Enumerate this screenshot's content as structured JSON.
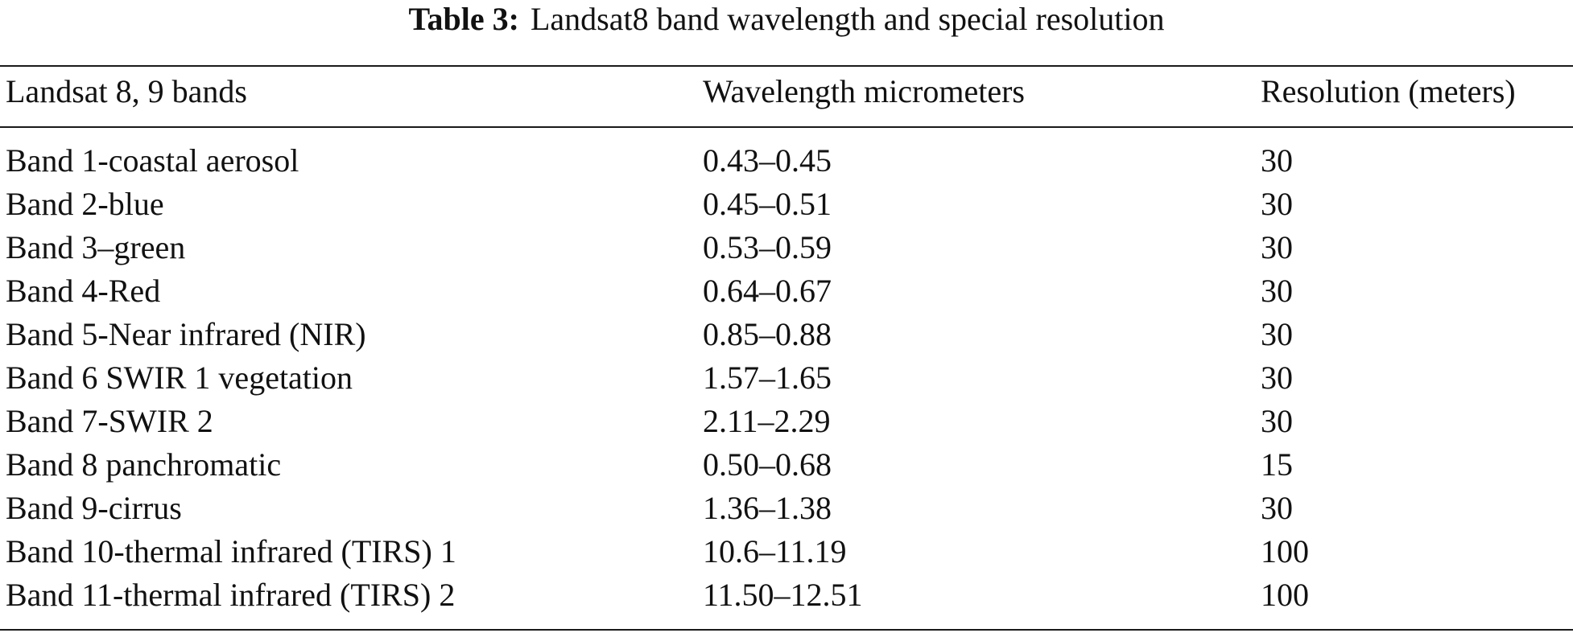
{
  "caption": {
    "label": "Table 3:",
    "text": "Landsat8 band wavelength and special resolution"
  },
  "table": {
    "headers": [
      "Landsat 8, 9 bands",
      "Wavelength micrometers",
      "Resolution (meters)"
    ],
    "rows": [
      [
        "Band 1-coastal aerosol",
        "0.43–0.45",
        "30"
      ],
      [
        "Band 2-blue",
        "0.45–0.51",
        "30"
      ],
      [
        "Band 3–green",
        "0.53–0.59",
        "30"
      ],
      [
        "Band 4-Red",
        "0.64–0.67",
        "30"
      ],
      [
        "Band 5-Near infrared (NIR)",
        "0.85–0.88",
        "30"
      ],
      [
        "Band 6 SWIR 1 vegetation",
        "1.57–1.65",
        "30"
      ],
      [
        "Band 7-SWIR 2",
        "2.11–2.29",
        "30"
      ],
      [
        "Band 8 panchromatic",
        "0.50–0.68",
        "15"
      ],
      [
        "Band 9-cirrus",
        "1.36–1.38",
        "30"
      ],
      [
        "Band 10-thermal infrared (TIRS) 1",
        "10.6–11.19",
        "100"
      ],
      [
        "Band 11-thermal infrared (TIRS) 2",
        "11.50–12.51",
        "100"
      ]
    ]
  }
}
